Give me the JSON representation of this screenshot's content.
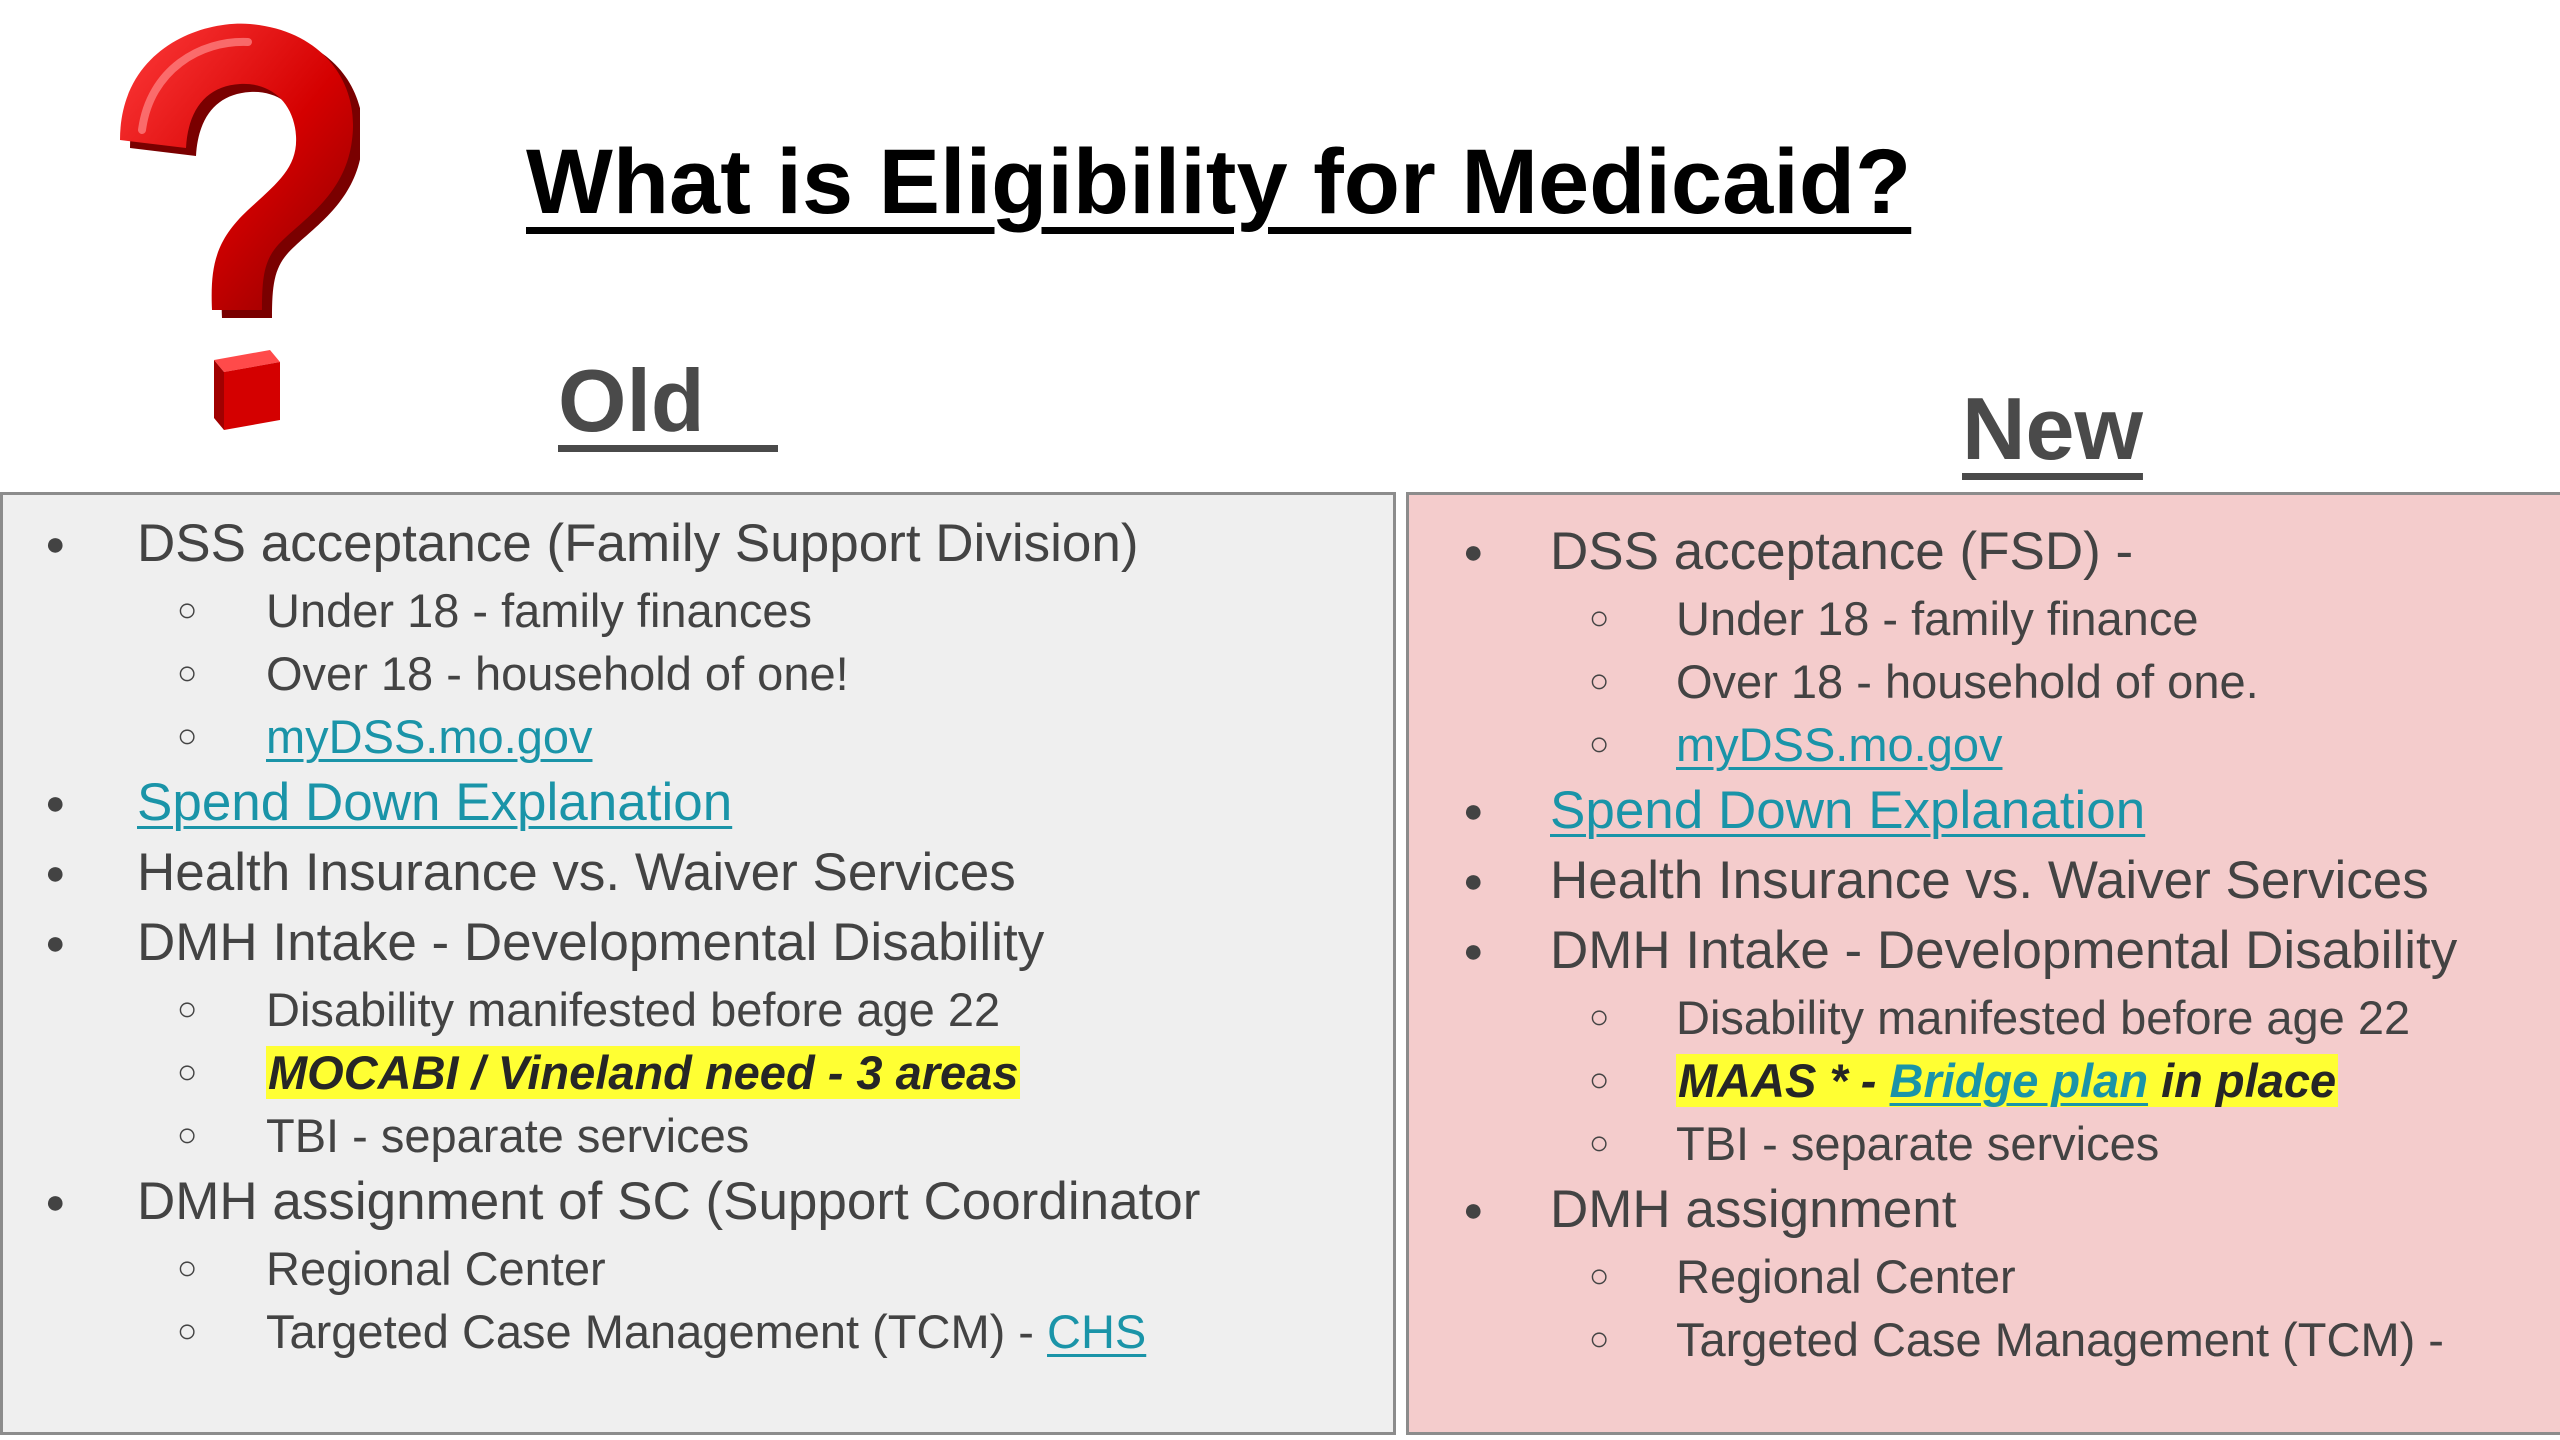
{
  "title": "What is Eligibility for Medicaid?",
  "colors": {
    "old_panel_bg": "#efefef",
    "new_panel_bg": "#f4cccc",
    "link": "#1a94a8",
    "highlight": "#ffff33",
    "question_mark": "#d40000"
  },
  "icons": {
    "logo": "question-mark-icon"
  },
  "old": {
    "heading": "Old   ",
    "items": [
      {
        "text": "DSS acceptance (Family Support Division)",
        "subitems": [
          "Under 18 - family finances",
          "Over 18 - household of one!"
        ],
        "link": "myDSS.mo.gov"
      },
      {
        "link": "Spend Down Explanation"
      },
      {
        "text": "Health Insurance vs. Waiver Services"
      },
      {
        "text": "DMH Intake - Developmental Disability",
        "sub1": "Disability manifested before age 22",
        "highlight": "MOCABI / Vineland need - 3 areas",
        "sub3": "TBI - separate services"
      },
      {
        "text": "DMH assignment of SC (Support Coordinator",
        "sub1": "Regional Center",
        "sub2_text": "Targeted Case Management (TCM) - ",
        "sub2_link": "CHS"
      }
    ]
  },
  "new": {
    "heading": "New",
    "items": [
      {
        "text": "DSS acceptance  (FSD) -",
        "subitems": [
          "Under 18 - family finance",
          "Over 18 - household of one."
        ],
        "link": "myDSS.mo.gov"
      },
      {
        "link": "Spend Down Explanation"
      },
      {
        "text": "Health Insurance vs. Waiver Services"
      },
      {
        "text": "DMH Intake - Developmental Disability",
        "sub1": "Disability manifested before age 22",
        "highlight_pre": "MAAS * - ",
        "highlight_link": "Bridge plan",
        "highlight_post": " in place",
        "sub3": "TBI - separate services"
      },
      {
        "text": "DMH assignment",
        "sub1": "Regional Center",
        "sub2": "Targeted Case Management (TCM) -"
      }
    ]
  }
}
